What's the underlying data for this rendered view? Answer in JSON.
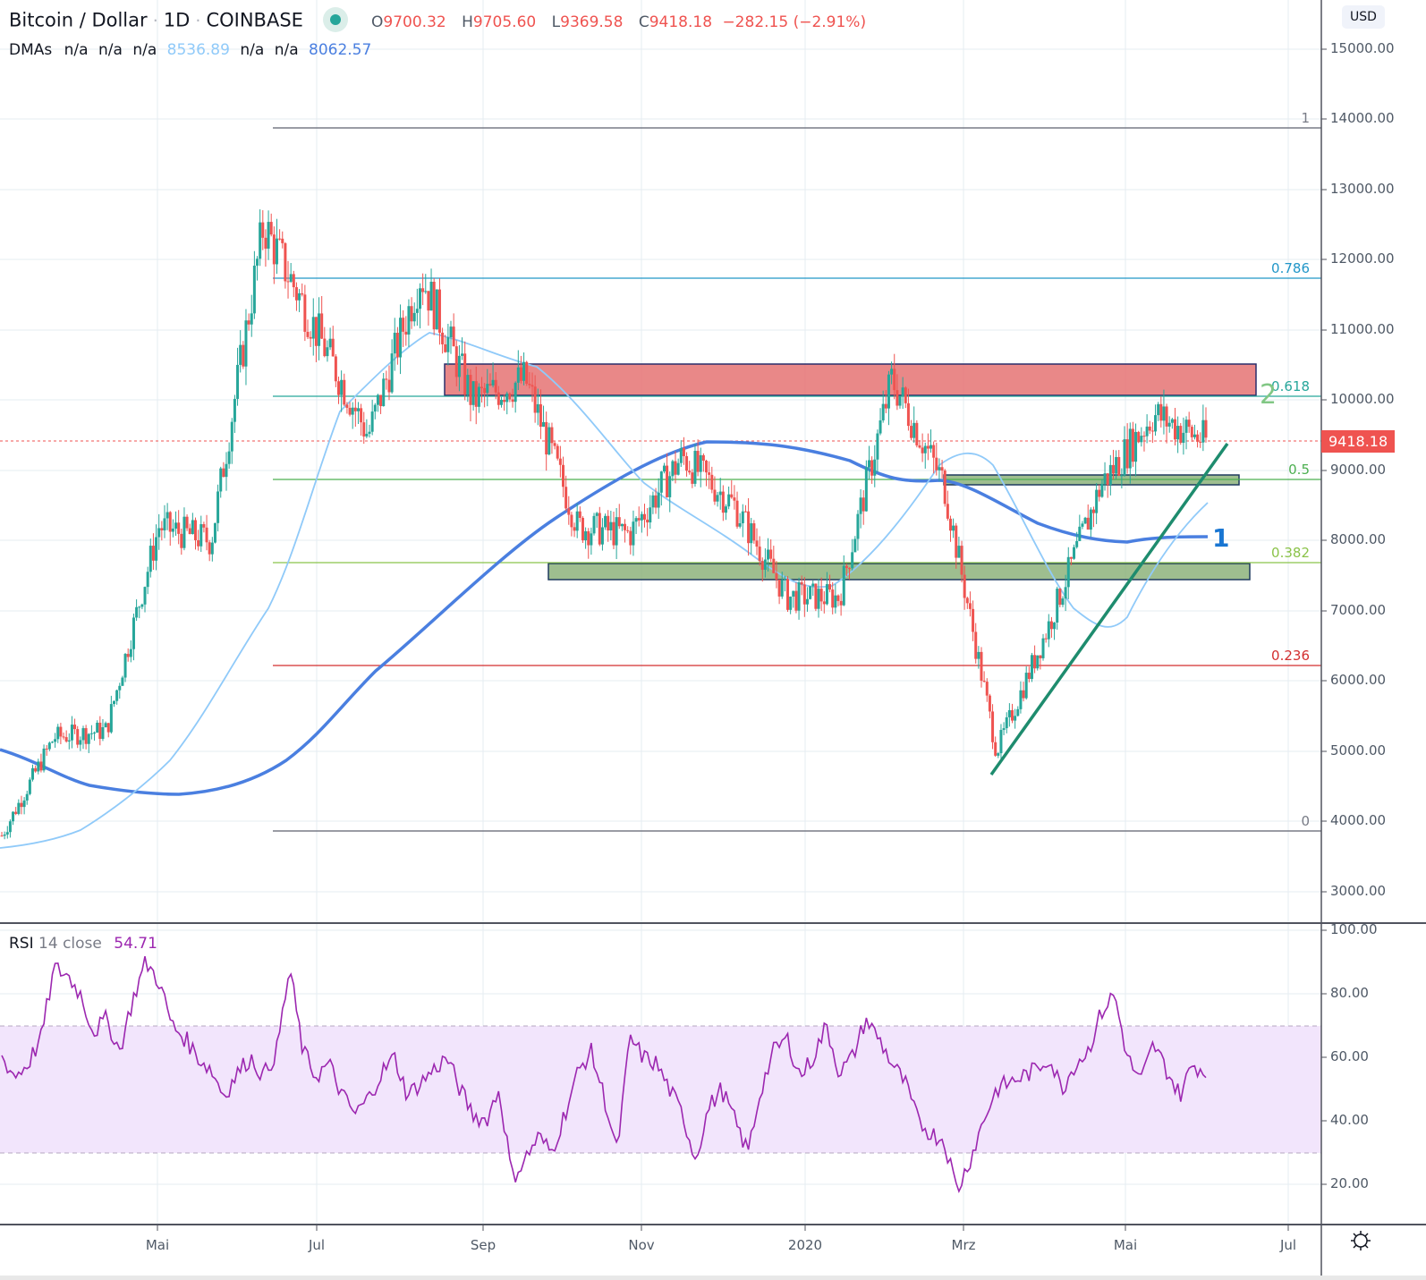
{
  "header": {
    "symbol": "Bitcoin / Dollar",
    "interval": "1D",
    "exchange": "COINBASE",
    "market_status_color": "#26a69a",
    "ohlc": {
      "open_label": "O",
      "open": "9700.32",
      "high_label": "H",
      "high": "9705.60",
      "low_label": "L",
      "low": "9369.58",
      "close_label": "C",
      "close": "9418.18",
      "change": "−282.15 (−2.91%)"
    }
  },
  "dma_legend": {
    "label": "DMAs",
    "values": [
      "n/a",
      "n/a",
      "n/a",
      "8536.89",
      "n/a",
      "n/a",
      "8062.57"
    ],
    "colors": {
      "fast": "#90caf9",
      "slow": "#4a7fe0"
    }
  },
  "currency": "USD",
  "last_price": "9418.18",
  "price_axis": [
    "15000.00",
    "14000.00",
    "13000.00",
    "12000.00",
    "11000.00",
    "10000.00",
    "9000.00",
    "8000.00",
    "7000.00",
    "6000.00",
    "5000.00",
    "4000.00",
    "3000.00"
  ],
  "time_axis": [
    "Mai",
    "Jul",
    "Sep",
    "Nov",
    "2020",
    "Mrz",
    "Mai",
    "Jul"
  ],
  "fib_levels": [
    {
      "label": "1",
      "price": 13880,
      "color": "#787b86"
    },
    {
      "label": "0.786",
      "price": 11720,
      "color": "#2196c8"
    },
    {
      "label": "0.618",
      "price": 10030,
      "color": "#26a69a"
    },
    {
      "label": "0.5",
      "price": 8840,
      "color": "#4caf50"
    },
    {
      "label": "0.382",
      "price": 7660,
      "color": "#8bc34a"
    },
    {
      "label": "0.236",
      "price": 6210,
      "color": "#d32f2f"
    },
    {
      "label": "0",
      "price": 3860,
      "color": "#787b86"
    }
  ],
  "annotations": {
    "wave_1": "1",
    "wave_2": "2"
  },
  "rsi": {
    "label": "RSI",
    "params": "14 close",
    "value": "54.71",
    "axis": [
      "100.00",
      "80.00",
      "60.00",
      "40.00",
      "20.00"
    ],
    "upper_band": 70,
    "lower_band": 30
  },
  "chart_data": [
    {
      "type": "candlestick",
      "title": "Bitcoin / Dollar · 1D · COINBASE",
      "xlabel": "",
      "ylabel": "USD",
      "ylim": [
        2500,
        15500
      ],
      "x_ticks": [
        "Mai 2019",
        "Jul 2019",
        "Sep 2019",
        "Nov 2019",
        "2020",
        "Mrz 2020",
        "Mai 2020",
        "Jul 2020"
      ],
      "approx_close_path": [
        {
          "x": "Apr 2019",
          "y": 3800
        },
        {
          "x": "Apr 2019 end",
          "y": 5200
        },
        {
          "x": "Mai 2019",
          "y": 5300
        },
        {
          "x": "Mai 2019 mid",
          "y": 8200
        },
        {
          "x": "Jun 2019",
          "y": 8000
        },
        {
          "x": "Jun 2019 end",
          "y": 12500
        },
        {
          "x": "Jul 2019",
          "y": 11000
        },
        {
          "x": "Jul 2019 mid",
          "y": 9500
        },
        {
          "x": "Aug 2019",
          "y": 11800
        },
        {
          "x": "Aug 2019 end",
          "y": 10000
        },
        {
          "x": "Sep 2019",
          "y": 10300
        },
        {
          "x": "Sep 2019 end",
          "y": 8200
        },
        {
          "x": "Okt 2019",
          "y": 8100
        },
        {
          "x": "Okt 2019 end",
          "y": 9200
        },
        {
          "x": "Nov 2019",
          "y": 8500
        },
        {
          "x": "Dez 2019",
          "y": 7200
        },
        {
          "x": "2020",
          "y": 7200
        },
        {
          "x": "Feb 2020",
          "y": 10300
        },
        {
          "x": "Mrz 2020",
          "y": 8800
        },
        {
          "x": "Mrz 2020 mid",
          "y": 5000
        },
        {
          "x": "Apr 2020",
          "y": 6800
        },
        {
          "x": "Apr 2020 end",
          "y": 8800
        },
        {
          "x": "Mai 2020",
          "y": 9800
        },
        {
          "x": "Mai 2020 end",
          "y": 9418.18
        }
      ],
      "series": [
        {
          "name": "DMA fast",
          "last": 8536.89,
          "color": "#90caf9"
        },
        {
          "name": "DMA 200",
          "last": 8062.57,
          "color": "#4a7fe0"
        }
      ],
      "zones": [
        {
          "name": "resistance",
          "from": 10050,
          "to": 10500,
          "color": "#e57373"
        },
        {
          "name": "support-upper",
          "from": 8780,
          "to": 8920,
          "color": "#8fb77e"
        },
        {
          "name": "support-lower",
          "from": 7450,
          "to": 7660,
          "color": "#8fb77e"
        }
      ],
      "fibonacci": {
        "0": 3860,
        "0.236": 6210,
        "0.382": 7660,
        "0.5": 8840,
        "0.618": 10030,
        "0.786": 11720,
        "1": 13880
      }
    },
    {
      "type": "line",
      "title": "RSI 14 close",
      "ylim": [
        10,
        100
      ],
      "last": 54.71,
      "bands": [
        30,
        70
      ],
      "approx_values": [
        60,
        54,
        58,
        66,
        88,
        86,
        80,
        68,
        72,
        62,
        78,
        90,
        84,
        70,
        66,
        60,
        56,
        48,
        55,
        60,
        54,
        62,
        88,
        62,
        54,
        58,
        48,
        42,
        47,
        55,
        60,
        48,
        52,
        56,
        60,
        50,
        42,
        40,
        50,
        22,
        28,
        35,
        30,
        42,
        55,
        62,
        48,
        30,
        66,
        60,
        58,
        50,
        42,
        28,
        44,
        50,
        40,
        30,
        50,
        62,
        66,
        54,
        60,
        70,
        55,
        60,
        72,
        66,
        58,
        52,
        40,
        36,
        34,
        18,
        28,
        40,
        50,
        52,
        54,
        56,
        60,
        50,
        58,
        62,
        74,
        80,
        60,
        52,
        64,
        56,
        48,
        58,
        55
      ]
    }
  ]
}
